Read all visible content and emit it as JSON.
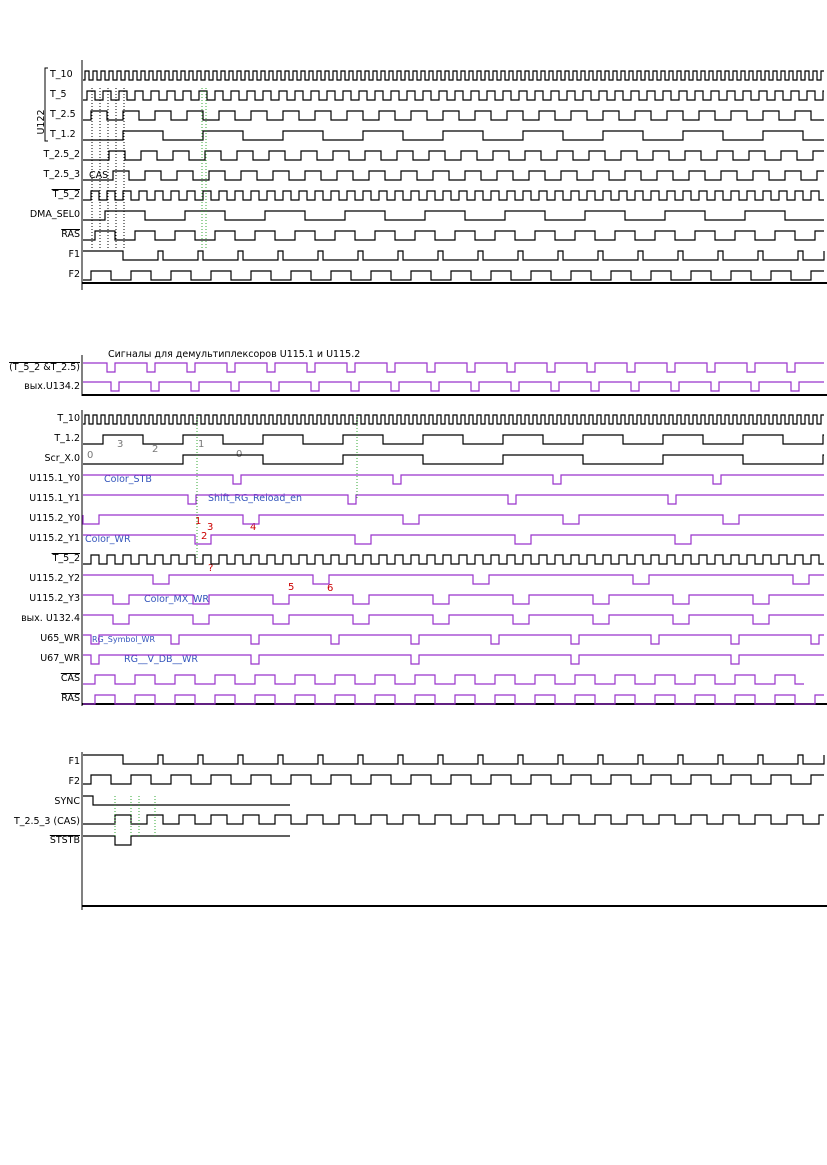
{
  "colors": {
    "black": "#000000",
    "purple": "#9933cc",
    "green": "#33aa33",
    "red": "#cc0000",
    "blue": "#3355bb",
    "gray": "#777777"
  },
  "panel1": {
    "group_label": "U122",
    "annotation": "CAS",
    "signals": [
      {
        "name": "T_10"
      },
      {
        "name": "T_5"
      },
      {
        "name": "T_2.5"
      },
      {
        "name": "T_1.2"
      },
      {
        "name": "T_2.5_2"
      },
      {
        "name": "T_2.5_3"
      },
      {
        "name": "T_5_2",
        "overbar": true
      },
      {
        "name": "DMA_SEL0"
      },
      {
        "name": "RAS",
        "overbar": true
      },
      {
        "name": "F1"
      },
      {
        "name": "F2"
      }
    ]
  },
  "panel2": {
    "caption": "Сигналы для демультиплексоров U115.1 и U115.2",
    "signals": [
      {
        "name": "(T_5_2 &T_2.5)",
        "overbar": true
      },
      {
        "name": "вых.U134.2"
      }
    ]
  },
  "panel3": {
    "signals": [
      {
        "name": "T_10"
      },
      {
        "name": "T_1.2"
      },
      {
        "name": "Scr_X.0"
      },
      {
        "name": "U115.1_Y0"
      },
      {
        "name": "U115.1_Y1"
      },
      {
        "name": "U115.2_Y0"
      },
      {
        "name": "U115.2_Y1"
      },
      {
        "name": "T_5_2",
        "overbar": true
      },
      {
        "name": "U115.2_Y2"
      },
      {
        "name": "U115.2_Y3"
      },
      {
        "name": "вых. U132.4"
      },
      {
        "name": "U65_WR"
      },
      {
        "name": "U67_WR"
      },
      {
        "name": "CAS",
        "overbar": true
      },
      {
        "name": "RAS",
        "overbar": true
      }
    ],
    "labels": {
      "color_stb": "Color_STB",
      "shift_rg": "Shift_RG_Reload_en",
      "color_wr": "Color_WR",
      "color_mx": "Color_MX_WR",
      "rg_symbol": "RG_Symbol_WR",
      "rg_vdb": "RG__V_DB__WR"
    },
    "digits": {
      "n0a": "0",
      "n3": "3",
      "n2": "2",
      "n1a": "1",
      "n0b": "0"
    },
    "red_marks": {
      "r1": "1",
      "r2": "2",
      "r3": "3",
      "r4": "4",
      "rq": "?",
      "r5": "5",
      "r6": "6"
    }
  },
  "panel4": {
    "signals": [
      {
        "name": "F1"
      },
      {
        "name": "F2"
      },
      {
        "name": "SYNC"
      },
      {
        "name": "T_2.5_3 (CAS)"
      },
      {
        "name": "STSTB",
        "overbar": true
      }
    ]
  }
}
